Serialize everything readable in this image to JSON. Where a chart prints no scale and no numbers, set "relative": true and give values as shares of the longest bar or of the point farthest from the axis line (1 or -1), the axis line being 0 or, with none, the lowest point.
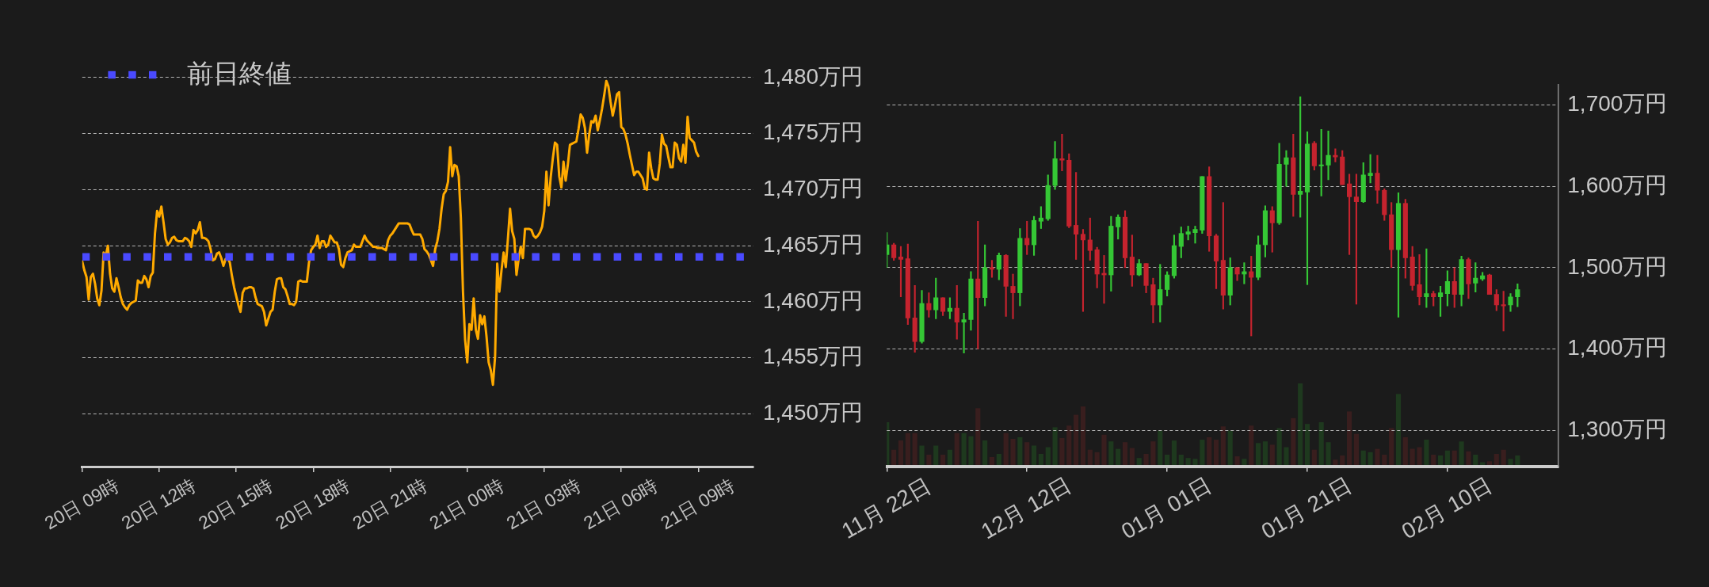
{
  "chart_data": [
    {
      "type": "line",
      "color": "#ffaa00",
      "categories": [
        "20日 09時",
        null,
        null,
        null,
        null,
        null,
        null,
        null,
        null,
        null,
        null,
        null,
        null,
        null,
        null,
        null,
        null,
        null,
        null,
        null,
        null,
        null,
        null,
        null,
        null,
        null,
        null,
        null,
        null,
        null,
        null,
        null,
        null,
        null,
        null,
        null,
        "20日 12時",
        null,
        null,
        null,
        null,
        null,
        null,
        null,
        null,
        null,
        null,
        null,
        null,
        null,
        null,
        null,
        null,
        null,
        null,
        null,
        null,
        null,
        null,
        null,
        null,
        null,
        null,
        null,
        null,
        null,
        null,
        null,
        null,
        null,
        null,
        null,
        "20日 15時",
        null,
        null,
        null,
        null,
        null,
        null,
        null,
        null,
        null,
        null,
        null,
        null,
        null,
        null,
        null,
        null,
        null,
        null,
        null,
        null,
        null,
        null,
        null,
        null,
        null,
        null,
        null,
        null,
        null,
        null,
        null,
        null,
        null,
        null,
        null,
        "20日 18時",
        null,
        null,
        null,
        null,
        null,
        null,
        null,
        null,
        null,
        null,
        null,
        null,
        null,
        null,
        null,
        null,
        null,
        null,
        null,
        null,
        null,
        null,
        null,
        null,
        null,
        null,
        null,
        null,
        null,
        null,
        null,
        null,
        null,
        null,
        null,
        "20日 21時",
        null,
        null,
        null,
        null,
        null,
        null,
        null,
        null,
        null,
        null,
        null,
        null,
        null,
        null,
        null,
        null,
        null,
        null,
        null,
        null,
        null,
        null,
        null,
        null,
        null,
        null,
        null,
        null,
        null,
        null,
        null,
        null,
        null,
        null,
        null,
        "21日 00時",
        null,
        null,
        null,
        null,
        null,
        null,
        null,
        null,
        null,
        null,
        null,
        null,
        null,
        null,
        null,
        null,
        null,
        null,
        null,
        null,
        null,
        null,
        null,
        null,
        null,
        null,
        null,
        null,
        null,
        null,
        null,
        null,
        null,
        null,
        null,
        "21日 03時",
        null,
        null,
        null,
        null,
        null,
        null,
        null,
        null,
        null,
        null,
        null,
        null,
        null,
        null,
        null,
        null,
        null,
        null,
        null,
        null,
        null,
        null,
        null,
        null,
        null,
        null,
        null,
        null,
        null,
        null,
        null,
        null,
        null,
        null,
        null,
        "21日 06時",
        null,
        null,
        null,
        null,
        null,
        null,
        null,
        null,
        null,
        null,
        null,
        null,
        null,
        null,
        null,
        null,
        null,
        null,
        null,
        null,
        null,
        null,
        null,
        null,
        null,
        null,
        null,
        null,
        null,
        null,
        null,
        null,
        null,
        null,
        null,
        "21日 09時"
      ],
      "values": [
        1463.6,
        1462.8,
        1462.2,
        1460.2,
        1462.2,
        1462.5,
        1461.6,
        1460.3,
        1459.7,
        1461.0,
        1464.4,
        1464.1,
        1465.0,
        1462.5,
        1461.2,
        1460.9,
        1462.1,
        1461.3,
        1460.4,
        1459.8,
        1459.5,
        1459.3,
        1459.7,
        1459.9,
        1460.0,
        1460.1,
        1461.9,
        1461.7,
        1461.7,
        1462.3,
        1462.0,
        1461.3,
        1462.3,
        1462.6,
        1466.1,
        1468.1,
        1467.6,
        1468.5,
        1467.1,
        1465.6,
        1465.1,
        1465.3,
        1465.7,
        1465.8,
        1465.5,
        1465.4,
        1465.4,
        1465.4,
        1465.7,
        1465.6,
        1465.4,
        1464.9,
        1466.4,
        1466.1,
        1466.4,
        1467.1,
        1465.7,
        1465.7,
        1465.6,
        1465.4,
        1464.7,
        1463.7,
        1463.8,
        1464.3,
        1464.4,
        1463.9,
        1463.2,
        1463.8,
        1463.9,
        1463.5,
        1462.3,
        1461.3,
        1460.5,
        1459.7,
        1459.1,
        1460.8,
        1461.2,
        1461.2,
        1461.3,
        1461.3,
        1461.2,
        1460.4,
        1459.8,
        1459.7,
        1459.6,
        1459.1,
        1457.9,
        1458.5,
        1459.1,
        1459.3,
        1460.9,
        1462.0,
        1462.1,
        1462.1,
        1461.3,
        1461.1,
        1460.5,
        1459.8,
        1459.8,
        1459.7,
        1460.0,
        1461.8,
        1461.9,
        1461.8,
        1461.8,
        1461.8,
        1463.5,
        1464.6,
        1464.9,
        1465.1,
        1465.9,
        1464.8,
        1465.4,
        1465.4,
        1464.9,
        1465.1,
        1465.9,
        1465.6,
        1465.3,
        1465.3,
        1464.7,
        1463.3,
        1463.1,
        1463.9,
        1464.4,
        1464.5,
        1464.6,
        1465.1,
        1464.9,
        1464.9,
        1464.9,
        1465.4,
        1465.9,
        1465.5,
        1465.3,
        1465.1,
        1464.9,
        1464.9,
        1464.8,
        1464.8,
        1464.8,
        1464.7,
        1464.6,
        1465.5,
        1465.9,
        1466.1,
        1466.4,
        1466.7,
        1467.0,
        1467.0,
        1467.0,
        1467.0,
        1467.0,
        1466.9,
        1466.4,
        1466.0,
        1466.0,
        1466.0,
        1466.0,
        1465.6,
        1464.7,
        1464.5,
        1464.2,
        1463.7,
        1463.2,
        1464.7,
        1465.4,
        1466.5,
        1468.3,
        1469.6,
        1469.9,
        1470.7,
        1473.8,
        1471.2,
        1472.2,
        1472.1,
        1471.2,
        1467.5,
        1460.9,
        1456.6,
        1454.6,
        1458.0,
        1457.5,
        1460.3,
        1457.5,
        1456.7,
        1458.8,
        1458.0,
        1458.7,
        1456.9,
        1454.6,
        1453.9,
        1452.6,
        1455.1,
        1463.4,
        1460.9,
        1462.8,
        1464.4,
        1463.1,
        1465.6,
        1468.3,
        1466.3,
        1465.6,
        1462.4,
        1463.8,
        1464.9,
        1463.9,
        1466.5,
        1466.5,
        1466.5,
        1466.4,
        1465.9,
        1465.7,
        1465.9,
        1466.2,
        1466.7,
        1468.1,
        1471.6,
        1468.6,
        1471.1,
        1472.8,
        1474.2,
        1474.0,
        1471.2,
        1470.2,
        1472.5,
        1470.8,
        1472.2,
        1474.0,
        1474.1,
        1474.2,
        1474.3,
        1475.4,
        1476.7,
        1476.4,
        1475.5,
        1473.3,
        1474.9,
        1476.1,
        1476.0,
        1476.6,
        1475.3,
        1476.2,
        1477.2,
        1478.4,
        1479.7,
        1479.2,
        1477.8,
        1476.6,
        1477.5,
        1478.5,
        1478.7,
        1475.6,
        1475.4,
        1474.9,
        1474.1,
        1473.1,
        1472.2,
        1471.3,
        1471.6,
        1471.6,
        1471.3,
        1471.0,
        1470.1,
        1470.0,
        1473.3,
        1471.9,
        1471.0,
        1470.9,
        1470.9,
        1472.3,
        1474.9,
        1474.1,
        1473.9,
        1472.9,
        1472.0,
        1472.0,
        1474.2,
        1474.0,
        1472.8,
        1472.5,
        1474.0,
        1472.4,
        1476.5,
        1474.6,
        1474.4,
        1474.2,
        1473.4,
        1473.0
      ],
      "ylim": [
        1445.3,
        1480
      ],
      "yticks": [
        {
          "value": 1450,
          "label": "1,450万円"
        },
        {
          "value": 1455,
          "label": "1,455万円"
        },
        {
          "value": 1460,
          "label": "1,460万円"
        },
        {
          "value": 1465,
          "label": "1,465万円"
        },
        {
          "value": 1470,
          "label": "1,470万円"
        },
        {
          "value": 1475,
          "label": "1,475万円"
        },
        {
          "value": 1480,
          "label": "1,480万円"
        }
      ],
      "grid": "y",
      "legend": "top left",
      "ref_lines": [
        {
          "axis": "y",
          "value": 1464,
          "label": "前日終値",
          "color": "#4a4aff",
          "line_style": "dotted"
        }
      ]
    },
    {
      "type": "candlestick",
      "categories": [
        "11月 22日",
        null,
        null,
        null,
        null,
        null,
        null,
        null,
        null,
        null,
        null,
        null,
        null,
        null,
        null,
        null,
        null,
        null,
        null,
        null,
        "12月 12日",
        null,
        null,
        null,
        null,
        null,
        null,
        null,
        null,
        null,
        null,
        null,
        null,
        null,
        null,
        null,
        null,
        null,
        null,
        null,
        "01月 01日",
        null,
        null,
        null,
        null,
        null,
        null,
        null,
        null,
        null,
        null,
        null,
        null,
        null,
        null,
        null,
        null,
        null,
        null,
        null,
        "01月 21日",
        null,
        null,
        null,
        null,
        null,
        null,
        null,
        null,
        null,
        null,
        null,
        null,
        null,
        null,
        null,
        null,
        null,
        null,
        null,
        "02月 10日",
        null,
        null,
        null,
        null,
        null,
        null,
        null,
        null,
        null,
        null
      ],
      "ohlc": [
        [
          1516,
          1543,
          1500,
          1528
        ],
        [
          1528,
          1530,
          1509,
          1512
        ],
        [
          1513,
          1526,
          1464,
          1510
        ],
        [
          1511,
          1529,
          1430,
          1438
        ],
        [
          1438,
          1478,
          1396,
          1409
        ],
        [
          1409,
          1472,
          1407,
          1456
        ],
        [
          1456,
          1469,
          1439,
          1448
        ],
        [
          1448,
          1487,
          1437,
          1463
        ],
        [
          1463,
          1463,
          1441,
          1446
        ],
        [
          1446,
          1463,
          1437,
          1450
        ],
        [
          1450,
          1478,
          1412,
          1433
        ],
        [
          1433,
          1444,
          1395,
          1436
        ],
        [
          1436,
          1495,
          1423,
          1486
        ],
        [
          1486,
          1557,
          1400,
          1463
        ],
        [
          1463,
          1528,
          1453,
          1500
        ],
        [
          1500,
          1509,
          1488,
          1498
        ],
        [
          1498,
          1518,
          1485,
          1515
        ],
        [
          1515,
          1516,
          1440,
          1477
        ],
        [
          1477,
          1492,
          1437,
          1469
        ],
        [
          1469,
          1548,
          1453,
          1536
        ],
        [
          1536,
          1557,
          1516,
          1528
        ],
        [
          1528,
          1563,
          1515,
          1558
        ],
        [
          1557,
          1575,
          1548,
          1561
        ],
        [
          1560,
          1614,
          1558,
          1601
        ],
        [
          1601,
          1655,
          1596,
          1634
        ],
        [
          1634,
          1664,
          1619,
          1632
        ],
        [
          1632,
          1640,
          1549,
          1551
        ],
        [
          1552,
          1617,
          1510,
          1541
        ],
        [
          1541,
          1547,
          1446,
          1534
        ],
        [
          1534,
          1561,
          1509,
          1521
        ],
        [
          1522,
          1525,
          1475,
          1492
        ],
        [
          1493,
          1515,
          1456,
          1491
        ],
        [
          1491,
          1563,
          1471,
          1551
        ],
        [
          1550,
          1565,
          1535,
          1562
        ],
        [
          1562,
          1570,
          1500,
          1512
        ],
        [
          1513,
          1540,
          1477,
          1491
        ],
        [
          1491,
          1510,
          1490,
          1505
        ],
        [
          1505,
          1505,
          1469,
          1478
        ],
        [
          1479,
          1487,
          1432,
          1454
        ],
        [
          1454,
          1504,
          1433,
          1473
        ],
        [
          1473,
          1495,
          1465,
          1491
        ],
        [
          1490,
          1540,
          1487,
          1527
        ],
        [
          1526,
          1550,
          1512,
          1542
        ],
        [
          1541,
          1551,
          1534,
          1544
        ],
        [
          1543,
          1551,
          1530,
          1547
        ],
        [
          1546,
          1612,
          1542,
          1612
        ],
        [
          1612,
          1624,
          1520,
          1539
        ],
        [
          1539,
          1541,
          1474,
          1508
        ],
        [
          1509,
          1580,
          1449,
          1466
        ],
        [
          1466,
          1512,
          1454,
          1500
        ],
        [
          1500,
          1500,
          1484,
          1492
        ],
        [
          1492,
          1506,
          1480,
          1495
        ],
        [
          1495,
          1514,
          1416,
          1488
        ],
        [
          1488,
          1539,
          1485,
          1528
        ],
        [
          1528,
          1576,
          1513,
          1570
        ],
        [
          1570,
          1575,
          1519,
          1555
        ],
        [
          1555,
          1653,
          1553,
          1627
        ],
        [
          1627,
          1644,
          1600,
          1635
        ],
        [
          1635,
          1664,
          1563,
          1590
        ],
        [
          1590,
          1710,
          1562,
          1594
        ],
        [
          1593,
          1667,
          1479,
          1652
        ],
        [
          1653,
          1655,
          1620,
          1625
        ],
        [
          1625,
          1670,
          1588,
          1626
        ],
        [
          1626,
          1668,
          1608,
          1638
        ],
        [
          1638,
          1646,
          1630,
          1636
        ],
        [
          1636,
          1644,
          1602,
          1602
        ],
        [
          1603,
          1615,
          1516,
          1587
        ],
        [
          1587,
          1615,
          1455,
          1581
        ],
        [
          1581,
          1629,
          1580,
          1614
        ],
        [
          1613,
          1639,
          1604,
          1616
        ],
        [
          1616,
          1638,
          1579,
          1595
        ],
        [
          1595,
          1597,
          1558,
          1565
        ],
        [
          1565,
          1580,
          1500,
          1522
        ],
        [
          1522,
          1592,
          1439,
          1579
        ],
        [
          1579,
          1584,
          1487,
          1512
        ],
        [
          1513,
          1526,
          1472,
          1478
        ],
        [
          1479,
          1516,
          1454,
          1464
        ],
        [
          1464,
          1523,
          1451,
          1468
        ],
        [
          1468,
          1471,
          1453,
          1464
        ],
        [
          1464,
          1477,
          1440,
          1469
        ],
        [
          1468,
          1496,
          1453,
          1483
        ],
        [
          1483,
          1500,
          1451,
          1467
        ],
        [
          1467,
          1514,
          1453,
          1510
        ],
        [
          1510,
          1512,
          1462,
          1480
        ],
        [
          1481,
          1506,
          1470,
          1487
        ],
        [
          1486,
          1494,
          1484,
          1490
        ],
        [
          1491,
          1492,
          1467,
          1467
        ],
        [
          1467,
          1473,
          1447,
          1454
        ],
        [
          1454,
          1471,
          1422,
          1453
        ],
        [
          1454,
          1468,
          1446,
          1464
        ],
        [
          1464,
          1480,
          1452,
          1473
        ]
      ],
      "colors": [
        "#35c735",
        "#c5232e",
        "#c5232e",
        "#c5232e",
        "#c5232e",
        "#35c735",
        "#c5232e",
        "#35c735",
        "#c5232e",
        "#35c735",
        "#c5232e",
        "#35c735",
        "#35c735",
        "#c5232e",
        "#35c735",
        "#c5232e",
        "#35c735",
        "#c5232e",
        "#c5232e",
        "#35c735",
        "#c5232e",
        "#35c735",
        "#35c735",
        "#35c735",
        "#35c735",
        "#c5232e",
        "#c5232e",
        "#c5232e",
        "#c5232e",
        "#c5232e",
        "#c5232e",
        "#c5232e",
        "#35c735",
        "#35c735",
        "#c5232e",
        "#c5232e",
        "#35c735",
        "#c5232e",
        "#c5232e",
        "#35c735",
        "#35c735",
        "#35c735",
        "#35c735",
        "#35c735",
        "#35c735",
        "#35c735",
        "#c5232e",
        "#c5232e",
        "#c5232e",
        "#35c735",
        "#c5232e",
        "#35c735",
        "#c5232e",
        "#35c735",
        "#35c735",
        "#c5232e",
        "#35c735",
        "#35c735",
        "#c5232e",
        "#35c735",
        "#35c735",
        "#c5232e",
        "#35c735",
        "#35c735",
        "#c5232e",
        "#c5232e",
        "#c5232e",
        "#c5232e",
        "#35c735",
        "#35c735",
        "#c5232e",
        "#c5232e",
        "#c5232e",
        "#35c735",
        "#c5232e",
        "#c5232e",
        "#c5232e",
        "#35c735",
        "#c5232e",
        "#35c735",
        "#35c735",
        "#c5232e",
        "#35c735",
        "#c5232e",
        "#35c735",
        "#35c735",
        "#c5232e",
        "#c5232e",
        "#c5232e",
        "#35c735",
        "#35c735"
      ],
      "ylim": [
        1255.7,
        1725
      ],
      "yticks": [
        {
          "value": 1300,
          "label": "1,300万円"
        },
        {
          "value": 1400,
          "label": "1,400万円"
        },
        {
          "value": 1500,
          "label": "1,500万円"
        },
        {
          "value": 1600,
          "label": "1,600万円"
        },
        {
          "value": 1700,
          "label": "1,700万円"
        }
      ],
      "grid": "y"
    },
    {
      "type": "bar",
      "relative": true,
      "categories": [
        null,
        null,
        null,
        null,
        null,
        null,
        null,
        null,
        null,
        null,
        null,
        null,
        null,
        null,
        null,
        null,
        null,
        null,
        null,
        null,
        null,
        null,
        null,
        null,
        null,
        null,
        null,
        null,
        null,
        null,
        null,
        null,
        null,
        null,
        null,
        null,
        null,
        null,
        null,
        null,
        null,
        null,
        null,
        null,
        null,
        null,
        null,
        null,
        null,
        null,
        null,
        null,
        null,
        null,
        null,
        null,
        null,
        null,
        null,
        null,
        null,
        null,
        null,
        null,
        null,
        null,
        null,
        null,
        null,
        null,
        null,
        null,
        null,
        null,
        null,
        null,
        null,
        null,
        null,
        null,
        null,
        null,
        null,
        null,
        null,
        null,
        null,
        null,
        null,
        null,
        null
      ],
      "values": [
        0.53,
        0.2,
        0.31,
        0.4,
        0.4,
        0.25,
        0.14,
        0.25,
        0.14,
        0.2,
        0.4,
        0.4,
        0.36,
        0.7,
        0.31,
        0.11,
        0.15,
        0.4,
        0.33,
        0.35,
        0.29,
        0.25,
        0.15,
        0.23,
        0.47,
        0.34,
        0.49,
        0.62,
        0.72,
        0.2,
        0.17,
        0.38,
        0.3,
        0.21,
        0.29,
        0.22,
        0.1,
        0.15,
        0.3,
        0.43,
        0.14,
        0.31,
        0.14,
        0.1,
        0.09,
        0.32,
        0.35,
        0.32,
        0.48,
        0.43,
        0.12,
        0.09,
        0.49,
        0.28,
        0.3,
        0.26,
        0.46,
        0.23,
        0.58,
        1,
        0.51,
        0.2,
        0.53,
        0.29,
        0.08,
        0.13,
        0.66,
        0.39,
        0.19,
        0.17,
        0.21,
        0.14,
        0.46,
        0.87,
        0.35,
        0.21,
        0.23,
        0.32,
        0.14,
        0.13,
        0.19,
        0.19,
        0.3,
        0.18,
        0.14,
        0.05,
        0.06,
        0.15,
        0.2,
        0.09,
        0.13
      ],
      "colors": [
        "#1e391e",
        "#391e1e",
        "#391e1e",
        "#391e1e",
        "#391e1e",
        "#1e391e",
        "#391e1e",
        "#1e391e",
        "#391e1e",
        "#1e391e",
        "#391e1e",
        "#1e391e",
        "#1e391e",
        "#391e1e",
        "#1e391e",
        "#391e1e",
        "#1e391e",
        "#391e1e",
        "#391e1e",
        "#1e391e",
        "#391e1e",
        "#1e391e",
        "#1e391e",
        "#1e391e",
        "#1e391e",
        "#391e1e",
        "#391e1e",
        "#391e1e",
        "#391e1e",
        "#391e1e",
        "#391e1e",
        "#391e1e",
        "#1e391e",
        "#1e391e",
        "#391e1e",
        "#391e1e",
        "#1e391e",
        "#391e1e",
        "#391e1e",
        "#1e391e",
        "#1e391e",
        "#1e391e",
        "#1e391e",
        "#1e391e",
        "#1e391e",
        "#1e391e",
        "#391e1e",
        "#391e1e",
        "#391e1e",
        "#1e391e",
        "#391e1e",
        "#1e391e",
        "#391e1e",
        "#1e391e",
        "#1e391e",
        "#391e1e",
        "#1e391e",
        "#1e391e",
        "#391e1e",
        "#1e391e",
        "#1e391e",
        "#391e1e",
        "#1e391e",
        "#1e391e",
        "#391e1e",
        "#391e1e",
        "#391e1e",
        "#391e1e",
        "#1e391e",
        "#1e391e",
        "#391e1e",
        "#391e1e",
        "#391e1e",
        "#1e391e",
        "#391e1e",
        "#391e1e",
        "#391e1e",
        "#1e391e",
        "#391e1e",
        "#1e391e",
        "#1e391e",
        "#391e1e",
        "#1e391e",
        "#391e1e",
        "#1e391e",
        "#1e391e",
        "#391e1e",
        "#391e1e",
        "#391e1e",
        "#1e391e",
        "#1e391e"
      ]
    }
  ]
}
